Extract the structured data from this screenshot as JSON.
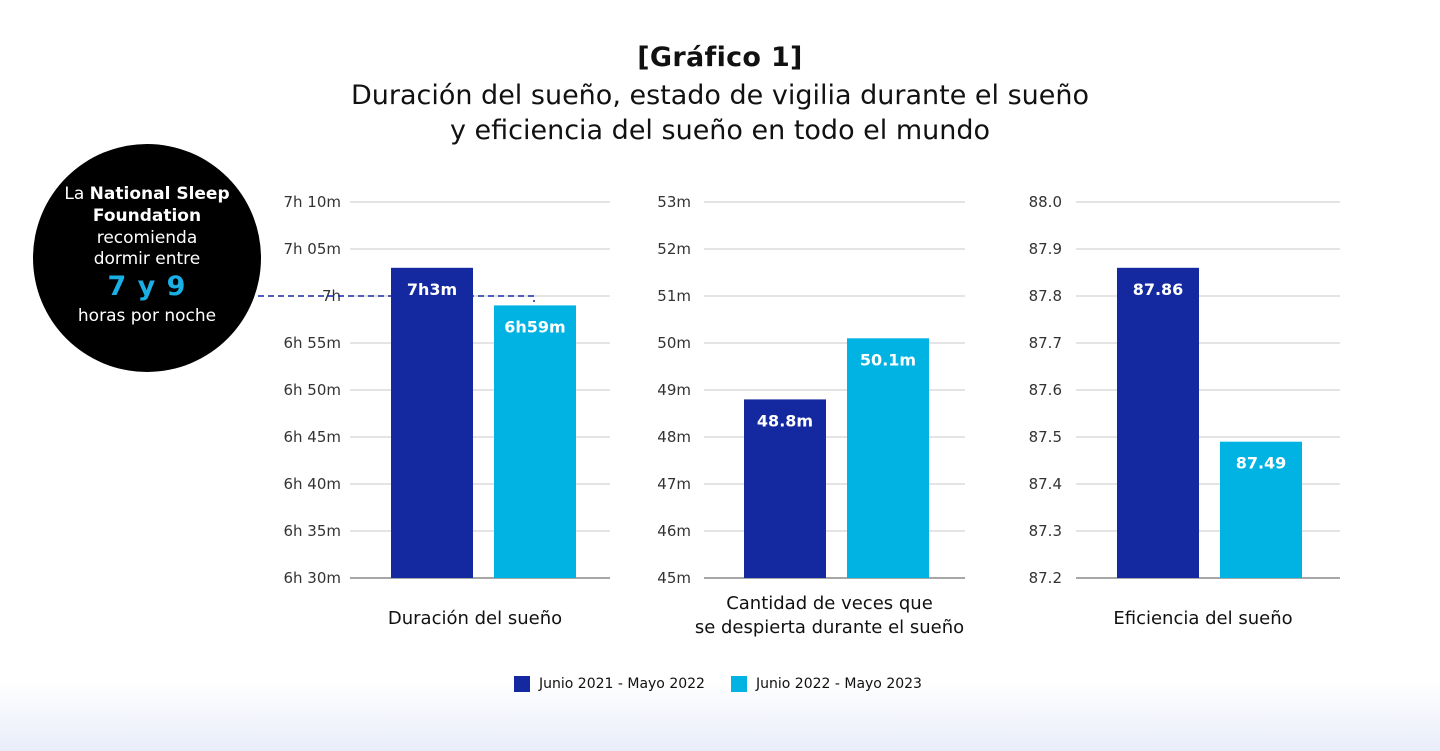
{
  "title": {
    "tag": "[Gráfico 1]",
    "line1": "Duración del sueño, estado de vigilia durante el sueño",
    "line2": "y eficiencia del sueño en todo el mundo"
  },
  "badge": {
    "pre": "La",
    "org1": "National Sleep",
    "org2": "Foundation",
    "line3": "recomienda",
    "line4": "dormir entre",
    "range": "7 y 9",
    "line6": "horas por noche",
    "reference_value_min": 420
  },
  "legend": [
    {
      "label": "Junio 2021 - Mayo 2022",
      "color": "#1428a0"
    },
    {
      "label": "Junio 2022 - Mayo 2023",
      "color": "#00b3e3"
    }
  ],
  "chart_data": [
    {
      "type": "bar",
      "xlabel": [
        "Duración del sueño"
      ],
      "ylim": [
        390,
        430
      ],
      "yticks": [
        390,
        395,
        400,
        405,
        410,
        415,
        420,
        425,
        430
      ],
      "ytick_labels": [
        "6h 30m",
        "6h 35m",
        "6h 40m",
        "6h 45m",
        "6h 50m",
        "6h 55m",
        "7h",
        "7h 05m",
        "7h 10m"
      ],
      "series": [
        {
          "name": "Junio 2021 - Mayo 2022",
          "value": 423,
          "label": "7h3m"
        },
        {
          "name": "Junio 2022 - Mayo 2023",
          "value": 419,
          "label": "6h59m"
        }
      ]
    },
    {
      "type": "bar",
      "xlabel": [
        "Cantidad de veces que",
        "se despierta durante el sueño"
      ],
      "ylim": [
        45,
        53
      ],
      "yticks": [
        45,
        46,
        47,
        48,
        49,
        50,
        51,
        52,
        53
      ],
      "ytick_labels": [
        "45m",
        "46m",
        "47m",
        "48m",
        "49m",
        "50m",
        "51m",
        "52m",
        "53m"
      ],
      "series": [
        {
          "name": "Junio 2021 - Mayo 2022",
          "value": 48.8,
          "label": "48.8m"
        },
        {
          "name": "Junio 2022 - Mayo 2023",
          "value": 50.1,
          "label": "50.1m"
        }
      ]
    },
    {
      "type": "bar",
      "xlabel": [
        "Eficiencia del sueño"
      ],
      "ylim": [
        87.2,
        88.0
      ],
      "yticks": [
        87.2,
        87.3,
        87.4,
        87.5,
        87.6,
        87.7,
        87.8,
        87.9,
        88.0
      ],
      "ytick_labels": [
        "87.2",
        "87.3",
        "87.4",
        "87.5",
        "87.6",
        "87.7",
        "87.8",
        "87.9",
        "88.0"
      ],
      "series": [
        {
          "name": "Junio 2021 - Mayo 2022",
          "value": 87.86,
          "label": "87.86"
        },
        {
          "name": "Junio 2022 - Mayo 2023",
          "value": 87.49,
          "label": "87.49"
        }
      ]
    }
  ]
}
